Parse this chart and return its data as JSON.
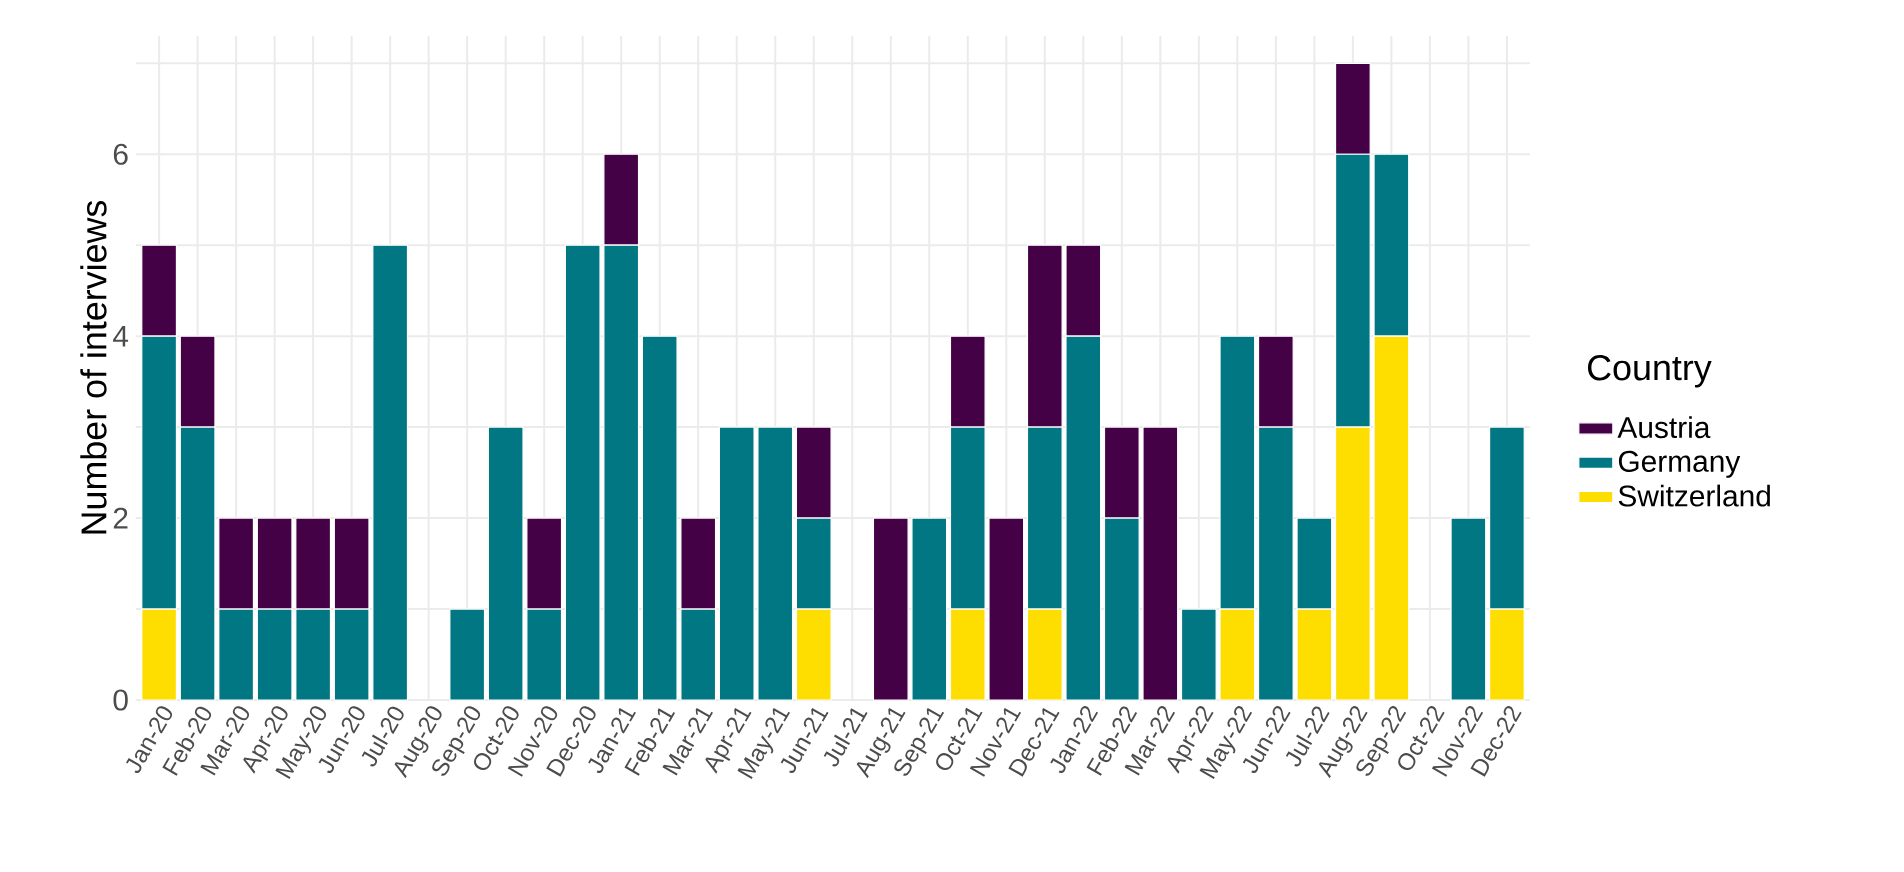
{
  "chart_data": {
    "type": "bar",
    "stacked": true,
    "ylabel": "Number of interviews",
    "legend_title": "Country",
    "legend": "right",
    "grid": true,
    "categories": [
      "Jan-20",
      "Feb-20",
      "Mar-20",
      "Apr-20",
      "May-20",
      "Jun-20",
      "Jul-20",
      "Aug-20",
      "Sep-20",
      "Oct-20",
      "Nov-20",
      "Dec-20",
      "Jan-21",
      "Feb-21",
      "Mar-21",
      "Apr-21",
      "May-21",
      "Jun-21",
      "Jul-21",
      "Aug-21",
      "Sep-21",
      "Oct-21",
      "Nov-21",
      "Dec-21",
      "Jan-22",
      "Feb-22",
      "Mar-22",
      "Apr-22",
      "May-22",
      "Jun-22",
      "Jul-22",
      "Aug-22",
      "Sep-22",
      "Oct-22",
      "Nov-22",
      "Dec-22"
    ],
    "series": [
      {
        "name": "Switzerland",
        "color": "#fdde00",
        "values": [
          1,
          0,
          0,
          0,
          0,
          0,
          0,
          0,
          0,
          0,
          0,
          0,
          0,
          0,
          0,
          0,
          0,
          1,
          0,
          0,
          0,
          1,
          0,
          1,
          0,
          0,
          0,
          0,
          1,
          0,
          1,
          3,
          4,
          0,
          0,
          1
        ]
      },
      {
        "name": "Germany",
        "color": "#007782",
        "values": [
          3,
          3,
          1,
          1,
          1,
          1,
          5,
          0,
          1,
          3,
          1,
          5,
          5,
          4,
          1,
          3,
          3,
          1,
          0,
          0,
          2,
          2,
          0,
          2,
          4,
          2,
          0,
          1,
          3,
          3,
          1,
          3,
          2,
          0,
          2,
          2
        ]
      },
      {
        "name": "Austria",
        "color": "#440145",
        "values": [
          1,
          1,
          1,
          1,
          1,
          1,
          0,
          0,
          0,
          0,
          1,
          0,
          1,
          0,
          1,
          0,
          0,
          1,
          0,
          2,
          0,
          1,
          2,
          2,
          1,
          1,
          3,
          0,
          0,
          1,
          0,
          1,
          0,
          0,
          0,
          0
        ]
      }
    ],
    "ylim": [
      0,
      7.3
    ],
    "yticks": [
      0,
      {
        "value": 1,
        "label": null
      },
      2,
      {
        "value": 3,
        "label": null
      },
      4,
      {
        "value": 5,
        "label": null
      },
      6,
      {
        "value": 7,
        "label": null
      }
    ]
  }
}
